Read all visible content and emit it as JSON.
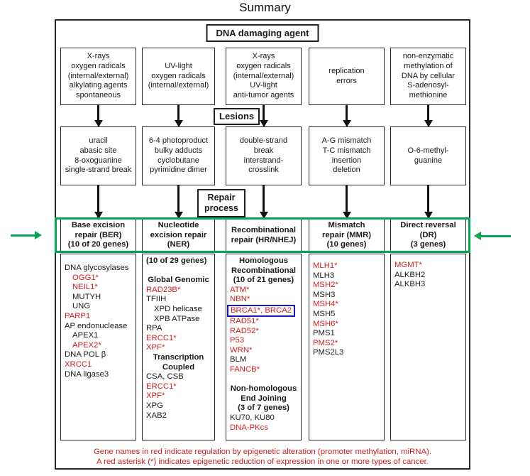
{
  "title": "Summary",
  "labels": {
    "dna_damaging_agent": "DNA damaging agent",
    "lesions": "Lesions",
    "repair_process": [
      "Repair",
      "process"
    ]
  },
  "colors": {
    "red": "#cf2020",
    "green": "#00a651",
    "blue": "#1717c9"
  },
  "columns": [
    {
      "name": "base-excision-repair",
      "agent_lines": [
        "X-rays",
        "oxygen radicals",
        "(internal/external)",
        "alkylating agents",
        "spontaneous"
      ],
      "lesion_lines": [
        "uracil",
        "abasic site",
        "8-oxoguanine",
        "single-strand break"
      ],
      "repair_header_lines": [
        "Base excision",
        "repair (BER)",
        "(10 of 20 genes)"
      ],
      "gene_lines": [
        {
          "t": "DNA glycosylases"
        },
        {
          "t": "OGG1*",
          "red": true,
          "indent": true
        },
        {
          "t": "NEIL1*",
          "red": true,
          "indent": true
        },
        {
          "t": "MUTYH",
          "indent": true
        },
        {
          "t": "UNG",
          "indent": true
        },
        {
          "t": "PARP1",
          "red": true
        },
        {
          "t": "AP endonuclease"
        },
        {
          "t": "APEX1",
          "indent": true
        },
        {
          "t": "APEX2*",
          "red": true,
          "indent": true
        },
        {
          "t": "DNA POL β"
        },
        {
          "t": "XRCC1",
          "red": true
        },
        {
          "t": "DNA ligase3"
        }
      ]
    },
    {
      "name": "nucleotide-excision-repair",
      "agent_lines": [
        "UV-light",
        "oxygen radicals",
        "(internal/external)"
      ],
      "lesion_lines": [
        "6-4 photoproduct",
        "bulky adducts",
        "cyclobutane",
        "pyrimidine dimer"
      ],
      "repair_header_lines": [
        "Nucleotide",
        "excision repair",
        "(NER)"
      ],
      "gene_lines": [
        {
          "t": "(10 of 29 genes)",
          "bold": true
        },
        {
          "blank": true
        },
        {
          "t": "Global Genomic",
          "bold": true,
          "center": true
        },
        {
          "t": "RAD23B*",
          "red": true
        },
        {
          "t": "TFIIH"
        },
        {
          "t": "XPD helicase",
          "indent": true
        },
        {
          "t": "XPB ATPase",
          "indent": true
        },
        {
          "t": "RPA"
        },
        {
          "t": "ERCC1*",
          "red": true
        },
        {
          "t": "XPF*",
          "red": true
        },
        {
          "t": "Transcription",
          "bold": true,
          "center": true
        },
        {
          "t": "Coupled",
          "bold": true,
          "center": true
        },
        {
          "t": "CSA, CSB"
        },
        {
          "t": "ERCC1*",
          "red": true
        },
        {
          "t": "XPF*",
          "red": true
        },
        {
          "t": "XPG"
        },
        {
          "t": "XAB2"
        }
      ]
    },
    {
      "name": "recombinational-repair",
      "agent_lines": [
        "X-rays",
        "oxygen radicals",
        "(internal/external)",
        "UV-light",
        "anti-tumor agents"
      ],
      "lesion_lines": [
        "double-strand",
        "break",
        "interstrand-",
        "crosslink"
      ],
      "repair_header_lines": [
        "Recombinational",
        "repair (HR/NHEJ)"
      ],
      "gene_lines": [
        {
          "t": "Homologous",
          "bold": true,
          "center": true
        },
        {
          "t": "Recombinational",
          "bold": true,
          "center": true
        },
        {
          "t": "(10 of 21 genes)",
          "bold": true,
          "center": true
        },
        {
          "t": "ATM*",
          "red": true
        },
        {
          "t": "NBN*",
          "red": true
        },
        {
          "t": "BRCA1*, BRCA2",
          "red": true,
          "bluebox": true
        },
        {
          "t": "RAD51*",
          "red": true
        },
        {
          "t": "RAD52*",
          "red": true
        },
        {
          "t": "P53",
          "red": true
        },
        {
          "t": "WRN*",
          "red": true
        },
        {
          "t": "BLM"
        },
        {
          "t": "FANCB*",
          "red": true
        },
        {
          "blank": true
        },
        {
          "t": "Non-homologous",
          "bold": true,
          "center": true
        },
        {
          "t": "End Joining",
          "bold": true,
          "center": true
        },
        {
          "t": "(3 of 7 genes)",
          "bold": true,
          "center": true
        },
        {
          "t": "KU70, KU80"
        },
        {
          "t": "DNA-PKcs",
          "red": true
        }
      ]
    },
    {
      "name": "mismatch-repair",
      "agent_lines": [
        "replication",
        "errors"
      ],
      "lesion_lines": [
        "A-G mismatch",
        "T-C mismatch",
        "insertion",
        "deletion"
      ],
      "repair_header_lines": [
        "Mismatch",
        "repair (MMR)",
        "(10 genes)"
      ],
      "gene_lines": [
        {
          "t": "MLH1*",
          "red": true
        },
        {
          "t": "MLH3"
        },
        {
          "t": "MSH2*",
          "red": true
        },
        {
          "t": "MSH3"
        },
        {
          "t": "MSH4*",
          "red": true
        },
        {
          "t": "MSH5"
        },
        {
          "t": "MSH6*",
          "red": true
        },
        {
          "t": "PMS1"
        },
        {
          "t": "PMS2*",
          "red": true
        },
        {
          "t": "PMS2L3"
        }
      ]
    },
    {
      "name": "direct-reversal",
      "agent_lines": [
        "non-enzymatic",
        "methylation of",
        "DNA by cellular",
        "S-adenosyl-",
        "methionine"
      ],
      "lesion_lines": [
        "O-6-methyl-",
        "guanine"
      ],
      "repair_header_lines": [
        "Direct reversal",
        "(DR)",
        "(3 genes)"
      ],
      "gene_lines": [
        {
          "t": "MGMT*",
          "red": true
        },
        {
          "t": "ALKBH2"
        },
        {
          "t": "ALKBH3"
        }
      ]
    }
  ],
  "footer_lines": [
    "Gene names in red indicate regulation by epigenetic alteration (promoter methylation, miRNA).",
    "A red asterisk (*) indicates epigenetic reduction of expression in one or more types of cancer."
  ]
}
